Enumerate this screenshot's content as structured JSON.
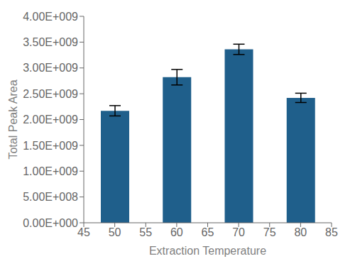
{
  "chart_data": {
    "type": "bar",
    "x": [
      50,
      60,
      70,
      80
    ],
    "values": [
      2170000000.0,
      2820000000.0,
      3360000000.0,
      2420000000.0
    ],
    "errors": [
      100000000.0,
      150000000.0,
      100000000.0,
      90000000.0
    ],
    "color": "#1F5F8B",
    "xlim": [
      45,
      85
    ],
    "xticks": [
      45,
      50,
      55,
      60,
      65,
      70,
      75,
      80,
      85
    ],
    "ylim": [
      0,
      4000000000.0
    ],
    "yticks": [
      {
        "value": 0,
        "label": "0.00E+000"
      },
      {
        "value": 500000000.0,
        "label": "5.00E+008"
      },
      {
        "value": 1000000000.0,
        "label": "1.00E+009"
      },
      {
        "value": 1500000000.0,
        "label": "1.50E+009"
      },
      {
        "value": 2000000000.0,
        "label": "2.00E+009"
      },
      {
        "value": 2500000000.0,
        "label": "2.50E+009"
      },
      {
        "value": 3000000000.0,
        "label": "3.00E+009"
      },
      {
        "value": 3500000000.0,
        "label": "3.50E+009"
      },
      {
        "value": 4000000000.0,
        "label": "4.00E+009"
      }
    ],
    "xlabel": "Extraction Temperature",
    "ylabel": "Total Peak Area",
    "grid": false
  }
}
